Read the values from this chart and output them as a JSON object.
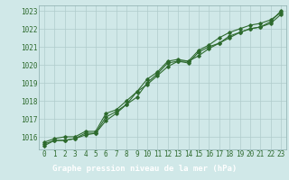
{
  "title": "Graphe pression niveau de la mer (hPa)",
  "xlabel_hours": [
    0,
    1,
    2,
    3,
    4,
    5,
    6,
    7,
    8,
    9,
    10,
    11,
    12,
    13,
    14,
    15,
    16,
    17,
    18,
    19,
    20,
    21,
    22,
    23
  ],
  "line1": [
    1015.6,
    1015.8,
    1015.8,
    1015.9,
    1016.1,
    1016.2,
    1017.1,
    1017.4,
    1017.8,
    1018.2,
    1019.0,
    1019.5,
    1020.1,
    1020.2,
    1020.1,
    1020.7,
    1021.0,
    1021.2,
    1021.6,
    1021.8,
    1022.0,
    1022.1,
    1022.3,
    1022.8
  ],
  "line2": [
    1015.5,
    1015.8,
    1015.8,
    1015.9,
    1016.2,
    1016.2,
    1016.9,
    1017.3,
    1017.8,
    1018.5,
    1019.2,
    1019.6,
    1020.2,
    1020.3,
    1020.2,
    1020.5,
    1020.9,
    1021.2,
    1021.5,
    1021.8,
    1022.0,
    1022.1,
    1022.4,
    1023.0
  ],
  "line3": [
    1015.7,
    1015.9,
    1016.0,
    1016.0,
    1016.3,
    1016.3,
    1017.3,
    1017.5,
    1018.0,
    1018.5,
    1018.9,
    1019.4,
    1019.9,
    1020.2,
    1020.2,
    1020.8,
    1021.1,
    1021.5,
    1021.8,
    1022.0,
    1022.2,
    1022.3,
    1022.5,
    1022.9
  ],
  "line_color": "#2d6a2d",
  "bg_color": "#d0e8e8",
  "title_bar_color": "#3a7a3a",
  "title_text_color": "#ffffff",
  "grid_color": "#b0cccc",
  "spine_color": "#8aacac",
  "ylim": [
    1015.3,
    1023.3
  ],
  "yticks": [
    1016,
    1017,
    1018,
    1019,
    1020,
    1021,
    1022,
    1023
  ],
  "title_fontsize": 6.5,
  "tick_fontsize": 5.5
}
